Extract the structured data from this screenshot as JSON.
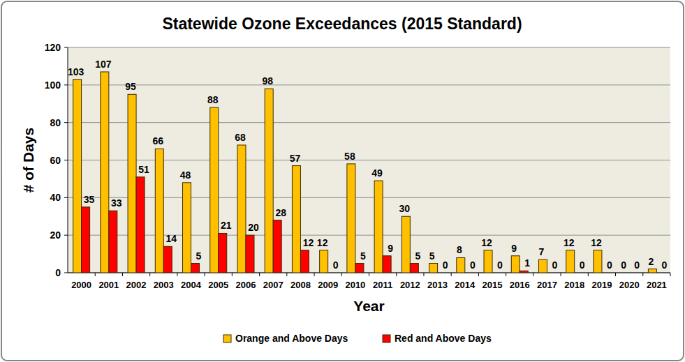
{
  "chart_data": {
    "type": "bar",
    "title": "Statewide Ozone Exceedances (2015 Standard)",
    "x_label": "Year",
    "y_label": "# of Days",
    "categories": [
      "2000",
      "2001",
      "2002",
      "2003",
      "2004",
      "2005",
      "2006",
      "2007",
      "2008",
      "2009",
      "2010",
      "2011",
      "2012",
      "2013",
      "2014",
      "2015",
      "2016",
      "2017",
      "2018",
      "2019",
      "2020",
      "2021"
    ],
    "series": [
      {
        "name": "Orange and Above Days",
        "color": "#ffc000",
        "values": [
          103,
          107,
          95,
          66,
          48,
          88,
          68,
          98,
          57,
          12,
          58,
          49,
          30,
          5,
          8,
          12,
          9,
          7,
          12,
          12,
          0,
          2
        ]
      },
      {
        "name": "Red and Above Days",
        "color": "#ff0000",
        "values": [
          35,
          33,
          51,
          14,
          5,
          21,
          20,
          28,
          12,
          0,
          5,
          9,
          5,
          0,
          0,
          0,
          1,
          0,
          0,
          0,
          0,
          0
        ]
      }
    ],
    "ylim": [
      0,
      120
    ],
    "yticks": [
      0,
      20,
      40,
      60,
      80,
      100,
      120
    ],
    "grid": true,
    "legend": "bottom",
    "data_labels": true
  }
}
